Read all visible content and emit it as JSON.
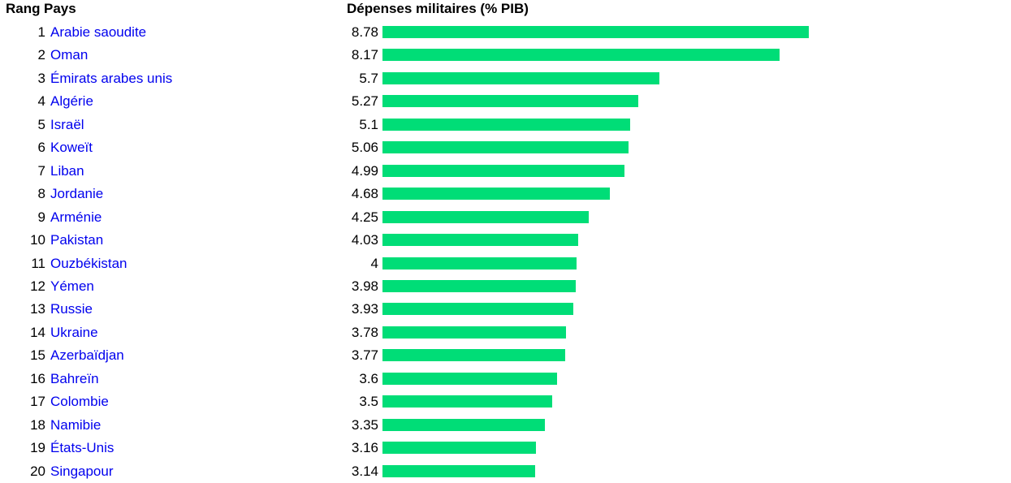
{
  "header": {
    "rank_label": "Rang",
    "country_label": "Pays",
    "value_label": "Dépenses militaires (% PIB)"
  },
  "colors": {
    "bar": "#00dd77",
    "link": "#0000ee"
  },
  "chart_data": {
    "type": "bar",
    "orientation": "horizontal",
    "title": "",
    "xlabel": "Dépenses militaires (% PIB)",
    "ylabel": "Pays",
    "ranks": [
      1,
      2,
      3,
      4,
      5,
      6,
      7,
      8,
      9,
      10,
      11,
      12,
      13,
      14,
      15,
      16,
      17,
      18,
      19,
      20
    ],
    "categories": [
      "Arabie saoudite",
      "Oman",
      "Émirats arabes unis",
      "Algérie",
      "Israël",
      "Koweït",
      "Liban",
      "Jordanie",
      "Arménie",
      "Pakistan",
      "Ouzbékistan",
      "Yémen",
      "Russie",
      "Ukraine",
      "Azerbaïdjan",
      "Bahreïn",
      "Colombie",
      "Namibie",
      "États-Unis",
      "Singapour"
    ],
    "values": [
      8.78,
      8.17,
      5.7,
      5.27,
      5.1,
      5.06,
      4.99,
      4.68,
      4.25,
      4.03,
      4,
      3.98,
      3.93,
      3.78,
      3.77,
      3.6,
      3.5,
      3.35,
      3.16,
      3.14
    ],
    "value_labels": [
      "8.78",
      "8.17",
      "5.7",
      "5.27",
      "5.1",
      "5.06",
      "4.99",
      "4.68",
      "4.25",
      "4.03",
      "4",
      "3.98",
      "3.93",
      "3.78",
      "3.77",
      "3.6",
      "3.5",
      "3.35",
      "3.16",
      "3.14"
    ],
    "xlim": [
      0,
      8.78
    ],
    "grid": false,
    "legend": "none"
  }
}
